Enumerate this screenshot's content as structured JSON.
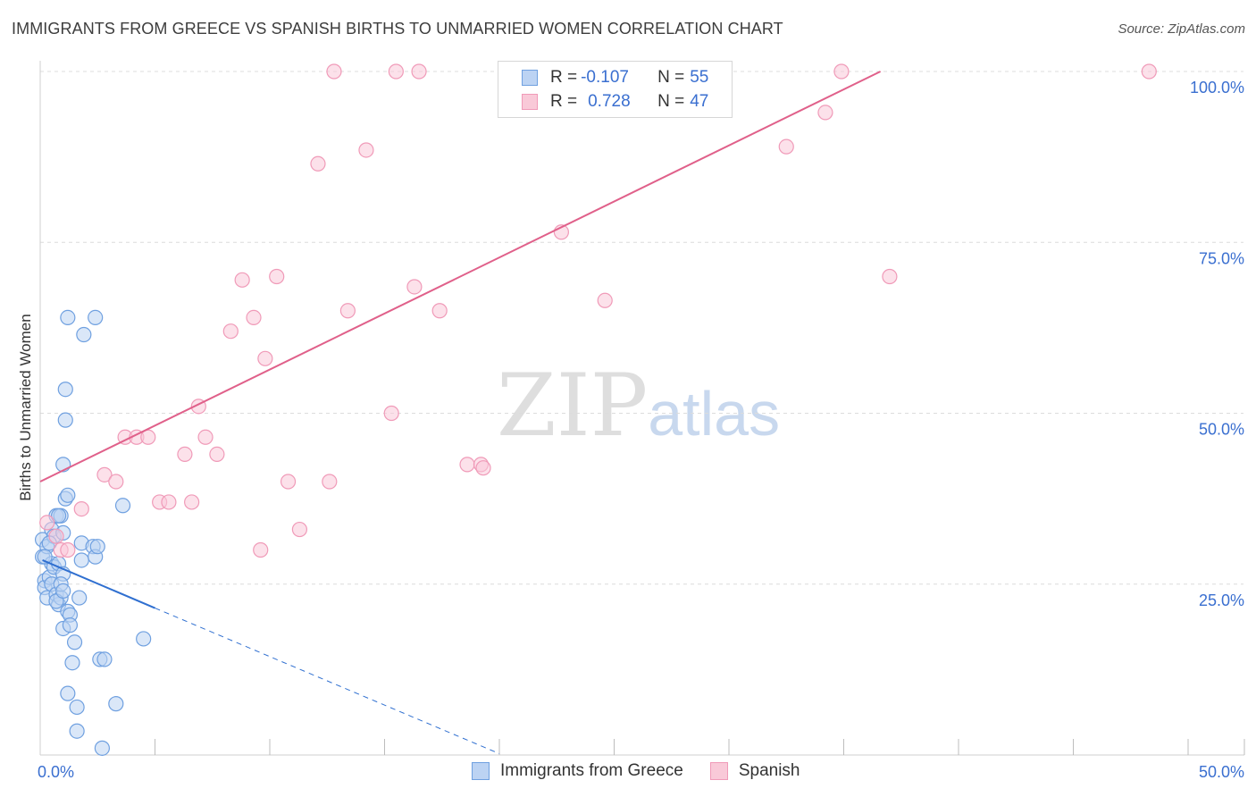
{
  "header": {
    "title": "IMMIGRANTS FROM GREECE VS SPANISH BIRTHS TO UNMARRIED WOMEN CORRELATION CHART",
    "source": "Source: ZipAtlas.com"
  },
  "watermark": {
    "zip": "ZIP",
    "atlas": "atlas"
  },
  "legend": {
    "rows": [
      {
        "r_label": "R =",
        "r_value": "-0.107",
        "n_label": "N =",
        "n_value": "55",
        "color": "#6fa0e0",
        "fill": "#bcd3f3"
      },
      {
        "r_label": "R =",
        "r_value": "0.728",
        "n_label": "N =",
        "n_value": "47",
        "color": "#f09ab8",
        "fill": "#f9c9d8"
      }
    ]
  },
  "bottom_legend": [
    {
      "label": "Immigrants from Greece",
      "color": "#6fa0e0",
      "fill": "#bcd3f3"
    },
    {
      "label": "Spanish",
      "color": "#f09ab8",
      "fill": "#f9c9d8"
    }
  ],
  "chart_data": {
    "type": "scatter",
    "title": "IMMIGRANTS FROM GREECE VS SPANISH BIRTHS TO UNMARRIED WOMEN CORRELATION CHART",
    "xlabel": "",
    "ylabel": "Births to Unmarried Women",
    "xlim": [
      0,
      50
    ],
    "ylim": [
      0,
      100
    ],
    "x_tick_labels": [
      "0.0%",
      "50.0%"
    ],
    "y_ticks": [
      25,
      50,
      75,
      100
    ],
    "y_tick_labels": [
      "25.0%",
      "50.0%",
      "75.0%",
      "100.0%"
    ],
    "grid": true,
    "series": [
      {
        "name": "Immigrants from Greece",
        "color": "#6fa0e0",
        "fill": "#bcd3f3",
        "trend": {
          "x0": 0.1,
          "y0": 28.5,
          "x1": 5.0,
          "y1": 21.5,
          "dash_to_x": 20.0,
          "dash_to_y": 0.2,
          "color": "#2f6fd0"
        },
        "points": [
          [
            0.1,
            31.5
          ],
          [
            0.1,
            29
          ],
          [
            0.2,
            25.5
          ],
          [
            0.2,
            24.5
          ],
          [
            0.3,
            23
          ],
          [
            0.3,
            30.5
          ],
          [
            0.4,
            26
          ],
          [
            0.5,
            33
          ],
          [
            0.5,
            28
          ],
          [
            0.5,
            25
          ],
          [
            0.6,
            32
          ],
          [
            0.6,
            27.5
          ],
          [
            0.7,
            23.5
          ],
          [
            0.7,
            35
          ],
          [
            0.8,
            22
          ],
          [
            0.8,
            28
          ],
          [
            0.9,
            35
          ],
          [
            0.9,
            23
          ],
          [
            1.0,
            32.5
          ],
          [
            1.0,
            26.5
          ],
          [
            1.0,
            18.5
          ],
          [
            1.1,
            53.5
          ],
          [
            1.1,
            49
          ],
          [
            1.0,
            42.5
          ],
          [
            1.1,
            37.5
          ],
          [
            1.2,
            38
          ],
          [
            1.2,
            21
          ],
          [
            1.3,
            20.5
          ],
          [
            1.3,
            19
          ],
          [
            1.4,
            13.5
          ],
          [
            1.2,
            9
          ],
          [
            1.5,
            16.5
          ],
          [
            1.6,
            7
          ],
          [
            1.7,
            23
          ],
          [
            1.6,
            3.5
          ],
          [
            1.8,
            28.5
          ],
          [
            1.8,
            31
          ],
          [
            1.2,
            64
          ],
          [
            1.9,
            61.5
          ],
          [
            2.4,
            64
          ],
          [
            2.3,
            30.5
          ],
          [
            2.4,
            29
          ],
          [
            2.5,
            30.5
          ],
          [
            2.6,
            14
          ],
          [
            2.7,
            1
          ],
          [
            2.8,
            14
          ],
          [
            3.3,
            7.5
          ],
          [
            3.6,
            36.5
          ],
          [
            4.5,
            17
          ],
          [
            0.2,
            29
          ],
          [
            0.4,
            31
          ],
          [
            0.7,
            22.5
          ],
          [
            0.9,
            25
          ],
          [
            1.0,
            24
          ],
          [
            0.8,
            35
          ]
        ]
      },
      {
        "name": "Spanish",
        "color": "#f09ab8",
        "fill": "#f9c9d8",
        "trend": {
          "x0": 0.0,
          "y0": 40,
          "x1": 36.6,
          "y1": 100,
          "color": "#e0608a"
        },
        "points": [
          [
            0.3,
            34
          ],
          [
            0.7,
            32
          ],
          [
            0.9,
            30
          ],
          [
            1.2,
            30
          ],
          [
            1.8,
            36
          ],
          [
            2.8,
            41
          ],
          [
            3.3,
            40
          ],
          [
            3.7,
            46.5
          ],
          [
            4.2,
            46.5
          ],
          [
            4.7,
            46.5
          ],
          [
            5.2,
            37
          ],
          [
            5.6,
            37
          ],
          [
            6.3,
            44
          ],
          [
            6.9,
            51
          ],
          [
            7.2,
            46.5
          ],
          [
            7.7,
            44
          ],
          [
            8.3,
            62
          ],
          [
            8.8,
            69.5
          ],
          [
            9.3,
            64
          ],
          [
            9.8,
            58
          ],
          [
            10.3,
            70
          ],
          [
            10.8,
            40
          ],
          [
            11.3,
            33
          ],
          [
            12.1,
            86.5
          ],
          [
            12.8,
            100
          ],
          [
            13.4,
            65
          ],
          [
            14.2,
            88.5
          ],
          [
            15.3,
            50
          ],
          [
            15.5,
            100
          ],
          [
            16.3,
            68.5
          ],
          [
            16.5,
            100
          ],
          [
            17.4,
            65
          ],
          [
            18.6,
            42.5
          ],
          [
            19.2,
            42.5
          ],
          [
            19.3,
            42
          ],
          [
            22.7,
            76.5
          ],
          [
            24.6,
            66.5
          ],
          [
            25.5,
            100
          ],
          [
            26.9,
            100
          ],
          [
            32.5,
            89
          ],
          [
            34.2,
            94
          ],
          [
            34.9,
            100
          ],
          [
            37.0,
            70
          ],
          [
            48.3,
            100
          ],
          [
            9.6,
            30
          ],
          [
            6.6,
            37
          ],
          [
            12.6,
            40
          ]
        ]
      }
    ]
  }
}
